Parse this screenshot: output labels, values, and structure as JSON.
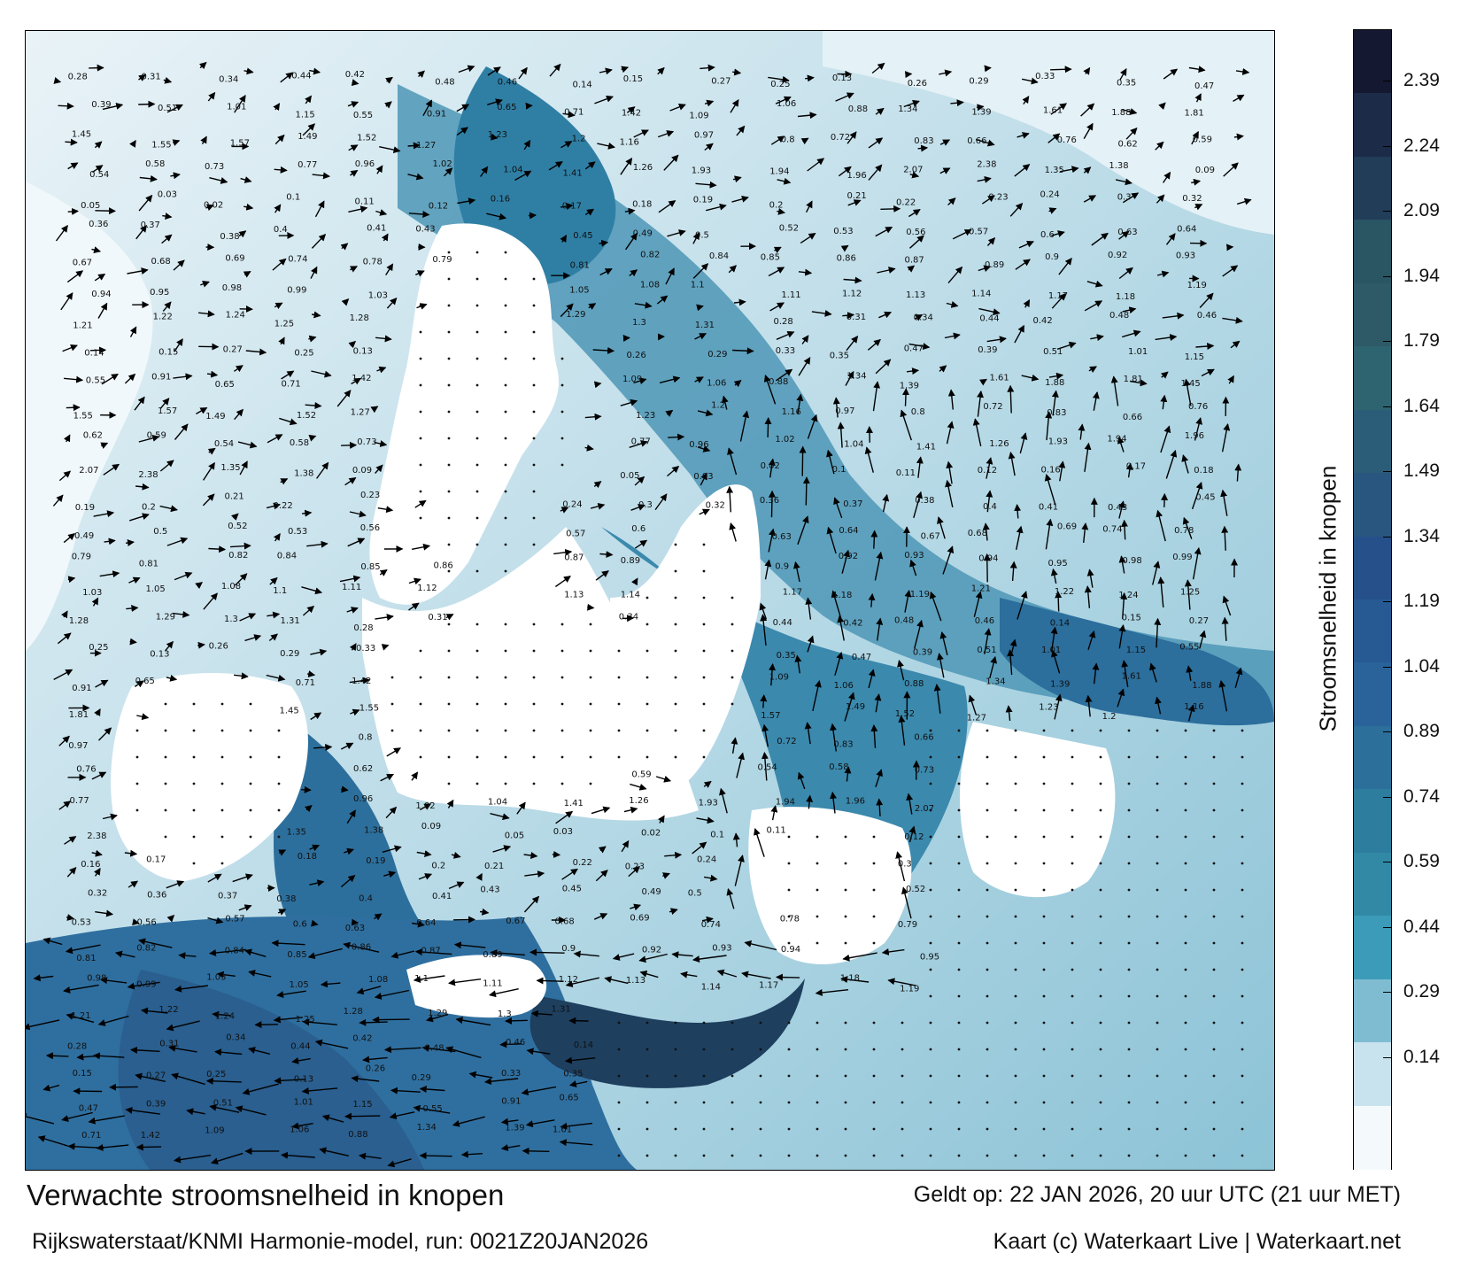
{
  "map": {
    "region": "Noordzee en Nederlandse kustwateren",
    "quantity": "Verwachte stroomsnelheid in knopen",
    "water_color": "#3d7fa6",
    "land_color": "#ffffff",
    "arrow_color": "#000000"
  },
  "colorbar": {
    "title": "Stroomsnelheid in knopen",
    "ticks": [
      "2.39",
      "2.24",
      "2.09",
      "1.94",
      "1.79",
      "1.64",
      "1.49",
      "1.34",
      "1.19",
      "1.04",
      "0.89",
      "0.74",
      "0.59",
      "0.44",
      "0.29",
      "0.14"
    ],
    "colors": [
      "#151831",
      "#1c2b48",
      "#213d58",
      "#2a5562",
      "#2d5a66",
      "#2e6370",
      "#2c5d78",
      "#29567e",
      "#26508a",
      "#275993",
      "#2a639a",
      "#2b6f9a",
      "#2d7d9e",
      "#3289a6",
      "#3b9bb8",
      "#7fbcd1",
      "#c9e3ee",
      "#f4fafc"
    ]
  },
  "sample_values": [
    "0.28",
    "0.31",
    "0.34",
    "0.44",
    "0.42",
    "0.48",
    "0.46",
    "0.14",
    "0.15",
    "0.27",
    "0.25",
    "0.13",
    "0.26",
    "0.29",
    "0.33",
    "0.35",
    "0.47",
    "0.39",
    "0.51",
    "1.01",
    "1.15",
    "0.55",
    "0.91",
    "0.65",
    "0.71",
    "1.42",
    "1.09",
    "1.06",
    "0.88",
    "1.34",
    "1.39",
    "1.61",
    "1.88",
    "1.81",
    "1.45",
    "1.55",
    "1.57",
    "1.49",
    "1.52",
    "1.27",
    "1.23",
    "1.2",
    "1.16",
    "0.97",
    "0.8",
    "0.72",
    "0.83",
    "0.66",
    "0.76",
    "0.62",
    "0.59",
    "0.54",
    "0.58",
    "0.73",
    "0.77",
    "0.96",
    "1.02",
    "1.04",
    "1.41",
    "1.26",
    "1.93",
    "1.94",
    "1.96",
    "2.07",
    "2.38",
    "1.35",
    "1.38",
    "0.09",
    "0.05",
    "0.03",
    "0.02",
    "0.1",
    "0.11",
    "0.12",
    "0.16",
    "0.17",
    "0.18",
    "0.19",
    "0.2",
    "0.21",
    "0.22",
    "0.23",
    "0.24",
    "0.3",
    "0.32",
    "0.36",
    "0.37",
    "0.38",
    "0.4",
    "0.41",
    "0.43",
    "0.45",
    "0.49",
    "0.5",
    "0.52",
    "0.53",
    "0.56",
    "0.57",
    "0.6",
    "0.63",
    "0.64",
    "0.67",
    "0.68",
    "0.69",
    "0.74",
    "0.78",
    "0.79",
    "0.81",
    "0.82",
    "0.84",
    "0.85",
    "0.86",
    "0.87",
    "0.89",
    "0.9",
    "0.92",
    "0.93",
    "0.94",
    "0.95",
    "0.98",
    "0.99",
    "1.03",
    "1.05",
    "1.08",
    "1.1",
    "1.11",
    "1.12",
    "1.13",
    "1.14",
    "1.17",
    "1.18",
    "1.19",
    "1.21",
    "1.22",
    "1.24",
    "1.25",
    "1.28",
    "1.29",
    "1.3",
    "1.31"
  ],
  "footer": {
    "title": "Verwachte stroomsnelheid in knopen",
    "source": "Rijkswaterstaat/KNMI Harmonie-model, run: 0021Z20JAN2026",
    "valid": "Geldt op: 22 JAN 2026, 20 uur UTC (21 uur MET)",
    "credit": "Kaart (c) Waterkaart Live | Waterkaart.net"
  }
}
